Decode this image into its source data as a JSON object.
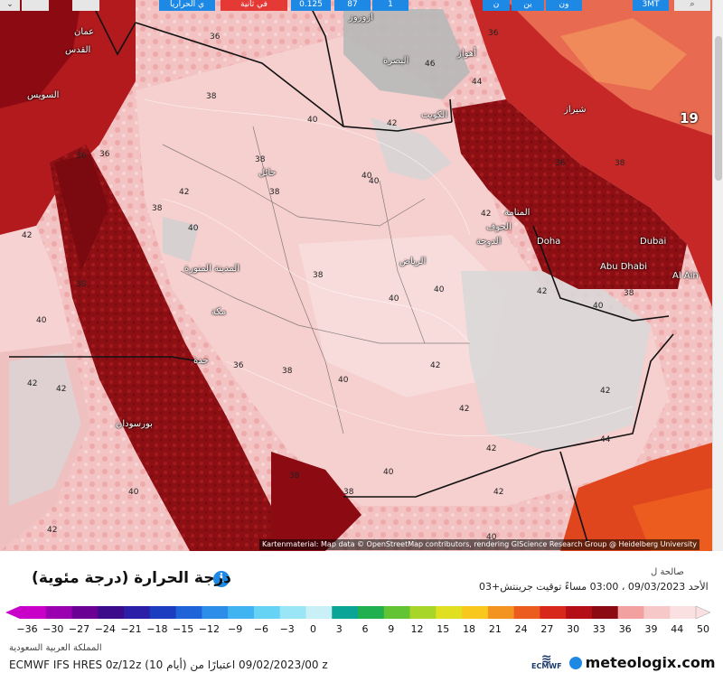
{
  "topbar": {
    "buttons": [
      "ي الحراريا",
      "في ثانیة",
      "0.125",
      "87",
      "1",
      "ن",
      "ين",
      "ون",
      "3MT"
    ]
  },
  "map": {
    "attribution": "Kartenmaterial: Map data © OpenStreetMap contributors, rendering GIScience Research Group @ Heidelberg University",
    "edge_number": "19",
    "cities": [
      "عمان",
      "القدس",
      "ازوروز",
      "البصرة",
      "الكويت",
      "حائل",
      "المدينة المنورة",
      "الرياض",
      "جدة",
      "بورسودان",
      "المنامة",
      "الدوحة",
      "Doha",
      "Abu Dhabi",
      "Dubai",
      "Al Ain",
      "شيراز",
      "أهواز",
      "مكة",
      "الجوف",
      "السويس"
    ],
    "labels": [
      "36",
      "38",
      "36",
      "40",
      "42",
      "40",
      "38",
      "38",
      "40",
      "38",
      "40",
      "42",
      "42",
      "40",
      "38",
      "38",
      "36",
      "40",
      "42",
      "40",
      "38",
      "40",
      "40",
      "42",
      "42",
      "42",
      "42",
      "44",
      "40",
      "42",
      "38",
      "36",
      "42",
      "36",
      "46",
      "44",
      "42",
      "42",
      "38",
      "40",
      "36",
      "40",
      "38",
      "42",
      "38"
    ]
  },
  "legend": {
    "title": "درجة الحرارة (درجة مئوية)",
    "info_icon": "i",
    "valid_label": "صالحة ل",
    "valid_time": "الأحد 09/03/2023 ، 03:00 مساءً توقيت جرينتش+03",
    "ticks": [
      "−36",
      "−30",
      "−27",
      "−24",
      "−21",
      "−18",
      "−15",
      "−12",
      "−9",
      "−6",
      "−3",
      "0",
      "3",
      "6",
      "9",
      "12",
      "15",
      "18",
      "21",
      "24",
      "27",
      "30",
      "33",
      "36",
      "39",
      "44",
      "50"
    ],
    "colors": [
      "#c800c8",
      "#9b00b0",
      "#6a0094",
      "#3c0b8c",
      "#2b1fa8",
      "#1c3dc0",
      "#1f63d8",
      "#2c8ee8",
      "#3fb4f0",
      "#66d2f4",
      "#9be6f6",
      "#c8f0f6",
      "#0aa596",
      "#20b050",
      "#62c432",
      "#a8d628",
      "#e0e020",
      "#f8c81c",
      "#f49420",
      "#ec5c1e",
      "#d8281c",
      "#b40e16",
      "#8c0a12",
      "#f2a0a0",
      "#f6c8c8",
      "#fae0e0"
    ],
    "region": "المملكة العربية السعودية",
    "model": "ECMWF IFS HRES 0z/12z (10 أيام) 09/02/2023/00 اعتبارًا من z"
  },
  "branding": {
    "ecmwf": "ECMWF",
    "logo": "meteologix.com"
  }
}
